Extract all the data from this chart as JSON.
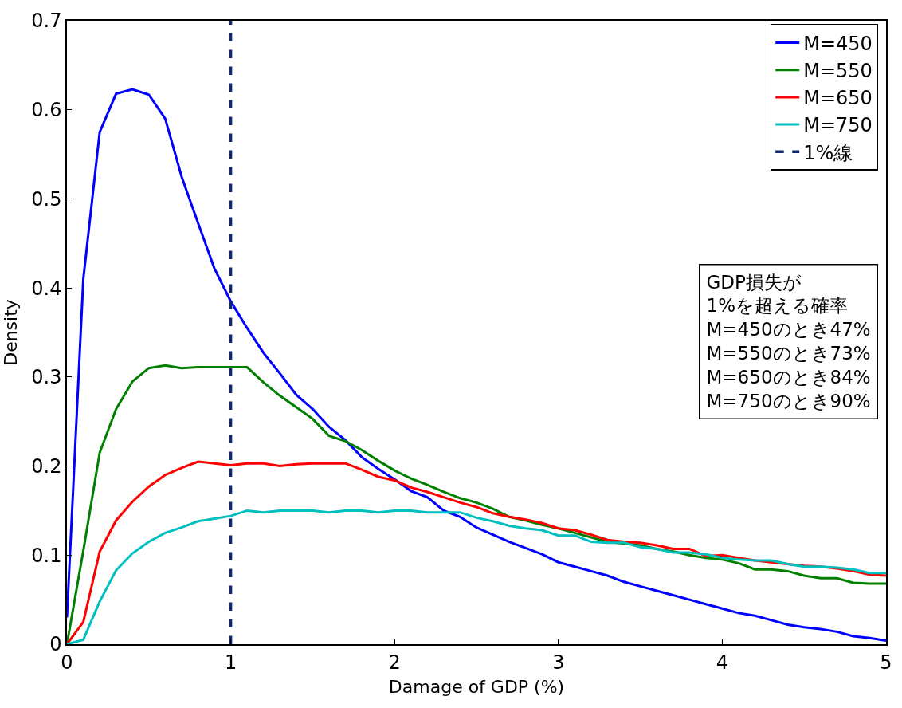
{
  "chart_data": {
    "type": "line",
    "xlabel": "Damage of GDP (%)",
    "ylabel": "Density",
    "x": [
      0,
      0.1,
      0.2,
      0.3,
      0.4,
      0.5,
      0.6,
      0.7,
      0.8,
      0.9,
      1.0,
      1.1,
      1.2,
      1.3,
      1.4,
      1.5,
      1.6,
      1.7,
      1.8,
      1.9,
      2.0,
      2.1,
      2.2,
      2.3,
      2.4,
      2.5,
      2.6,
      2.7,
      2.8,
      2.9,
      3.0,
      3.1,
      3.2,
      3.3,
      3.4,
      3.5,
      3.6,
      3.7,
      3.8,
      3.9,
      4.0,
      4.1,
      4.2,
      4.3,
      4.4,
      4.5,
      4.6,
      4.7,
      4.8,
      4.9,
      5.0
    ],
    "series": [
      {
        "name": "M=450",
        "color": "#0000ff",
        "values": [
          0.03,
          0.41,
          0.575,
          0.618,
          0.623,
          0.617,
          0.59,
          0.525,
          0.473,
          0.422,
          0.385,
          0.355,
          0.327,
          0.304,
          0.28,
          0.264,
          0.244,
          0.229,
          0.21,
          0.197,
          0.185,
          0.172,
          0.165,
          0.15,
          0.143,
          0.131,
          0.123,
          0.115,
          0.108,
          0.101,
          0.092,
          0.087,
          0.082,
          0.077,
          0.07,
          0.065,
          0.06,
          0.055,
          0.05,
          0.045,
          0.04,
          0.035,
          0.032,
          0.027,
          0.022,
          0.019,
          0.017,
          0.014,
          0.009,
          0.007,
          0.004
        ]
      },
      {
        "name": "M=550",
        "color": "#008000",
        "values": [
          0,
          0.105,
          0.215,
          0.264,
          0.295,
          0.31,
          0.313,
          0.31,
          0.311,
          0.311,
          0.311,
          0.311,
          0.294,
          0.279,
          0.266,
          0.253,
          0.234,
          0.228,
          0.218,
          0.206,
          0.195,
          0.186,
          0.179,
          0.171,
          0.164,
          0.159,
          0.152,
          0.143,
          0.139,
          0.134,
          0.13,
          0.125,
          0.12,
          0.115,
          0.113,
          0.111,
          0.107,
          0.104,
          0.1,
          0.097,
          0.095,
          0.091,
          0.084,
          0.084,
          0.082,
          0.077,
          0.074,
          0.074,
          0.069,
          0.068,
          0.068
        ]
      },
      {
        "name": "M=650",
        "color": "#ff0000",
        "values": [
          0,
          0.025,
          0.104,
          0.139,
          0.16,
          0.177,
          0.19,
          0.198,
          0.205,
          0.203,
          0.201,
          0.203,
          0.203,
          0.2,
          0.202,
          0.203,
          0.203,
          0.203,
          0.196,
          0.188,
          0.184,
          0.176,
          0.171,
          0.165,
          0.159,
          0.154,
          0.147,
          0.143,
          0.14,
          0.136,
          0.13,
          0.128,
          0.123,
          0.117,
          0.115,
          0.114,
          0.111,
          0.107,
          0.107,
          0.099,
          0.1,
          0.097,
          0.094,
          0.092,
          0.09,
          0.088,
          0.087,
          0.085,
          0.082,
          0.078,
          0.077
        ]
      },
      {
        "name": "M=750",
        "color": "#00bfbf",
        "values": [
          0,
          0.005,
          0.048,
          0.083,
          0.102,
          0.115,
          0.125,
          0.131,
          0.138,
          0.141,
          0.144,
          0.15,
          0.148,
          0.15,
          0.15,
          0.15,
          0.148,
          0.15,
          0.15,
          0.148,
          0.15,
          0.15,
          0.148,
          0.148,
          0.148,
          0.142,
          0.138,
          0.133,
          0.13,
          0.128,
          0.122,
          0.122,
          0.115,
          0.114,
          0.114,
          0.109,
          0.107,
          0.103,
          0.103,
          0.101,
          0.097,
          0.095,
          0.094,
          0.094,
          0.09,
          0.087,
          0.087,
          0.086,
          0.084,
          0.08,
          0.08
        ]
      },
      {
        "name": "1%線",
        "color": "#14296b",
        "line_style": "dashed",
        "x": [
          1,
          1
        ],
        "values": [
          0,
          0.7
        ]
      }
    ],
    "annotations": [
      "GDP損失が\n1%を超える確率\nM=450のとき47%\nM=550のとき73%\nM=650のとき84%\nM=750のとき90%"
    ],
    "xlim": [
      0,
      5
    ],
    "xticks": [
      0,
      1,
      2,
      3,
      4,
      5
    ],
    "ylim": [
      0,
      0.7
    ],
    "yticks": [
      0,
      0.1,
      0.2,
      0.3,
      0.4,
      0.5,
      0.6,
      0.7
    ],
    "legend": "top right",
    "marker": "none",
    "line_style": "solid"
  }
}
